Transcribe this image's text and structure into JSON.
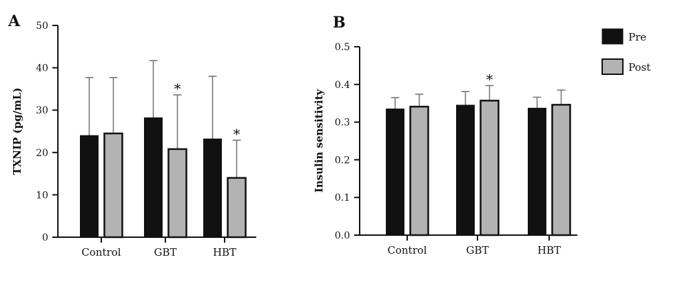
{
  "legend": {
    "pre_label": "Pre",
    "post_label": "Post",
    "pre_color": "#111111",
    "post_color": "#b3b3b3"
  },
  "chart_data": [
    {
      "panel": "A",
      "type": "bar",
      "categories": [
        "Control",
        "GBT",
        "HBT"
      ],
      "ylabel": "TXNIP (pg/mL)",
      "ylim": [
        0,
        50
      ],
      "yticks": [
        "0",
        "10",
        "20",
        "30",
        "40",
        "50"
      ],
      "series": [
        {
          "name": "Pre",
          "values": [
            24,
            28.2,
            23.2
          ],
          "errors": [
            13.7,
            13.5,
            14.8
          ]
        },
        {
          "name": "Post",
          "values": [
            24.5,
            20.8,
            14
          ],
          "errors": [
            13.2,
            12.8,
            8.9
          ]
        }
      ],
      "annotations": [
        {
          "category": "GBT",
          "series": "Post",
          "text": "*"
        },
        {
          "category": "HBT",
          "series": "Post",
          "text": "*"
        }
      ]
    },
    {
      "panel": "B",
      "type": "bar",
      "categories": [
        "Control",
        "GBT",
        "HBT"
      ],
      "ylabel": "Insulin sensitivity",
      "ylim": [
        0,
        0.5
      ],
      "yticks": [
        "0.0",
        "0.1",
        "0.2",
        "0.3",
        "0.4",
        "0.5"
      ],
      "series": [
        {
          "name": "Pre",
          "values": [
            0.335,
            0.345,
            0.337
          ],
          "errors": [
            0.03,
            0.036,
            0.029
          ]
        },
        {
          "name": "Post",
          "values": [
            0.341,
            0.357,
            0.346
          ],
          "errors": [
            0.033,
            0.04,
            0.039
          ]
        }
      ],
      "annotations": [
        {
          "category": "GBT",
          "series": "Post",
          "text": "*"
        }
      ]
    }
  ]
}
